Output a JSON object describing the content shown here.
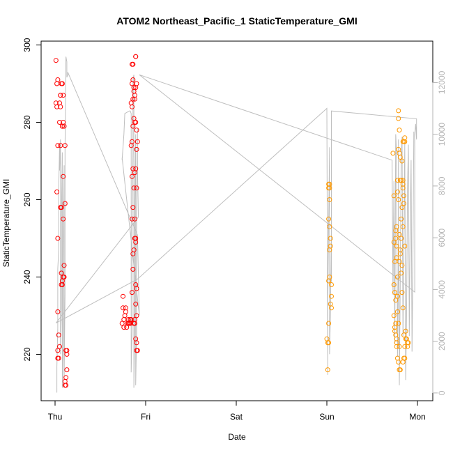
{
  "chart_data": {
    "type": "scatter",
    "title": "ATOM2 Northeast_Pacific_1 StaticTemperature_GMI",
    "xlabel": "Date",
    "ylabel": "StaticTemperature_GMI",
    "x_ticks": [
      "Thu",
      "Fri",
      "Sat",
      "Sun",
      "Mon"
    ],
    "x_domain_days": [
      0,
      4.05
    ],
    "ylim": [
      208,
      301
    ],
    "y_ticks": [
      220,
      240,
      260,
      280,
      300
    ],
    "y2lim": [
      -300,
      13600
    ],
    "y2_ticks": [
      0,
      2000,
      4000,
      6000,
      8000,
      10000,
      12000
    ],
    "colors": {
      "early": "#ff0000",
      "late": "#ff9900",
      "altitude": "#bebebe"
    },
    "series": [
      {
        "color": "#ff0000",
        "points": [
          [
            0.01,
            296
          ],
          [
            0.02,
            290
          ],
          [
            0.03,
            291
          ],
          [
            0.01,
            285
          ],
          [
            0.02,
            284
          ],
          [
            0.03,
            274
          ],
          [
            0.02,
            262
          ],
          [
            0.03,
            250
          ],
          [
            0.03,
            231
          ],
          [
            0.04,
            225
          ],
          [
            0.03,
            221
          ],
          [
            0.03,
            219
          ],
          [
            0.04,
            219
          ],
          [
            0.05,
            222
          ],
          [
            0.05,
            280
          ],
          [
            0.06,
            287
          ],
          [
            0.05,
            285
          ],
          [
            0.06,
            284
          ],
          [
            0.06,
            274
          ],
          [
            0.06,
            258
          ],
          [
            0.07,
            258
          ],
          [
            0.07,
            241
          ],
          [
            0.08,
            239
          ],
          [
            0.08,
            238
          ],
          [
            0.07,
            290
          ],
          [
            0.08,
            290
          ],
          [
            0.09,
            287
          ],
          [
            0.09,
            280
          ],
          [
            0.08,
            279
          ],
          [
            0.09,
            266
          ],
          [
            0.09,
            255
          ],
          [
            0.1,
            243
          ],
          [
            0.09,
            240
          ],
          [
            0.1,
            240
          ],
          [
            0.11,
            274
          ],
          [
            0.1,
            279
          ],
          [
            0.11,
            259
          ],
          [
            0.12,
            221
          ],
          [
            0.13,
            220
          ],
          [
            0.13,
            216
          ],
          [
            0.12,
            214
          ],
          [
            0.11,
            213
          ],
          [
            0.12,
            212
          ],
          [
            0.11,
            212
          ],
          [
            0.13,
            221
          ],
          [
            0.07,
            238
          ],
          [
            0.08,
            279
          ],
          [
            0.06,
            287
          ],
          [
            0.74,
            228
          ],
          [
            0.75,
            235
          ],
          [
            0.75,
            232
          ],
          [
            0.76,
            229
          ],
          [
            0.76,
            227
          ],
          [
            0.77,
            230
          ],
          [
            0.78,
            231
          ],
          [
            0.78,
            232
          ],
          [
            0.79,
            227
          ],
          [
            0.8,
            228
          ],
          [
            0.81,
            228
          ],
          [
            0.81,
            229
          ],
          [
            0.82,
            228
          ],
          [
            0.83,
            229
          ],
          [
            0.83,
            228
          ],
          [
            0.84,
            229
          ],
          [
            0.85,
            236
          ],
          [
            0.86,
            242
          ],
          [
            0.86,
            246
          ],
          [
            0.85,
            255
          ],
          [
            0.86,
            258
          ],
          [
            0.85,
            266
          ],
          [
            0.86,
            268
          ],
          [
            0.87,
            247
          ],
          [
            0.88,
            250
          ],
          [
            0.89,
            249
          ],
          [
            0.89,
            250
          ],
          [
            0.88,
            255
          ],
          [
            0.87,
            263
          ],
          [
            0.88,
            267
          ],
          [
            0.89,
            268
          ],
          [
            0.9,
            263
          ],
          [
            0.84,
            274
          ],
          [
            0.85,
            275
          ],
          [
            0.86,
            279
          ],
          [
            0.87,
            281
          ],
          [
            0.88,
            280
          ],
          [
            0.89,
            280
          ],
          [
            0.9,
            278
          ],
          [
            0.84,
            285
          ],
          [
            0.85,
            284
          ],
          [
            0.86,
            286
          ],
          [
            0.87,
            288
          ],
          [
            0.88,
            286
          ],
          [
            0.89,
            289
          ],
          [
            0.85,
            290
          ],
          [
            0.86,
            291
          ],
          [
            0.87,
            289
          ],
          [
            0.88,
            287
          ],
          [
            0.85,
            295
          ],
          [
            0.86,
            295
          ],
          [
            0.89,
            297
          ],
          [
            0.89,
            297
          ],
          [
            0.9,
            290
          ],
          [
            0.91,
            275
          ],
          [
            0.9,
            273
          ],
          [
            0.89,
            238
          ],
          [
            0.9,
            237
          ],
          [
            0.89,
            233
          ],
          [
            0.9,
            230
          ],
          [
            0.88,
            228
          ],
          [
            0.87,
            228
          ],
          [
            0.9,
            223
          ],
          [
            0.89,
            224
          ],
          [
            0.9,
            221
          ],
          [
            0.91,
            221
          ],
          [
            0.88,
            229
          ]
        ]
      },
      {
        "color": "#ff9900",
        "points": [
          [
            3.0,
            224
          ],
          [
            3.01,
            223
          ],
          [
            3.02,
            223
          ],
          [
            3.01,
            216
          ],
          [
            3.02,
            228
          ],
          [
            3.02,
            239
          ],
          [
            3.03,
            240
          ],
          [
            3.03,
            247
          ],
          [
            3.02,
            255
          ],
          [
            3.03,
            253
          ],
          [
            3.04,
            248
          ],
          [
            3.03,
            260
          ],
          [
            3.02,
            263
          ],
          [
            3.03,
            264
          ],
          [
            3.02,
            264
          ],
          [
            3.03,
            263
          ],
          [
            3.04,
            250
          ],
          [
            3.05,
            238
          ],
          [
            3.05,
            235
          ],
          [
            3.04,
            233
          ],
          [
            3.05,
            232
          ],
          [
            3.73,
            272
          ],
          [
            3.74,
            261
          ],
          [
            3.74,
            249
          ],
          [
            3.75,
            244
          ],
          [
            3.74,
            238
          ],
          [
            3.75,
            236
          ],
          [
            3.76,
            234
          ],
          [
            3.74,
            230
          ],
          [
            3.75,
            227
          ],
          [
            3.75,
            226
          ],
          [
            3.76,
            228
          ],
          [
            3.76,
            225
          ],
          [
            3.77,
            224
          ],
          [
            3.77,
            223
          ],
          [
            3.77,
            222
          ],
          [
            3.78,
            219
          ],
          [
            3.79,
            218
          ],
          [
            3.8,
            216
          ],
          [
            3.81,
            216
          ],
          [
            3.8,
            222
          ],
          [
            3.79,
            228
          ],
          [
            3.78,
            231
          ],
          [
            3.78,
            235
          ],
          [
            3.78,
            240
          ],
          [
            3.77,
            245
          ],
          [
            3.76,
            250
          ],
          [
            3.77,
            253
          ],
          [
            3.76,
            252
          ],
          [
            3.78,
            262
          ],
          [
            3.79,
            260
          ],
          [
            3.78,
            265
          ],
          [
            3.79,
            273
          ],
          [
            3.8,
            278
          ],
          [
            3.79,
            281
          ],
          [
            3.79,
            283
          ],
          [
            3.8,
            272
          ],
          [
            3.81,
            271
          ],
          [
            3.82,
            265
          ],
          [
            3.83,
            258
          ],
          [
            3.82,
            250
          ],
          [
            3.81,
            246
          ],
          [
            3.82,
            241
          ],
          [
            3.83,
            236
          ],
          [
            3.84,
            232
          ],
          [
            3.85,
            225
          ],
          [
            3.86,
            222
          ],
          [
            3.85,
            219
          ],
          [
            3.84,
            218
          ],
          [
            3.86,
            219
          ],
          [
            3.87,
            224
          ],
          [
            3.88,
            224
          ],
          [
            3.87,
            226
          ],
          [
            3.89,
            223
          ],
          [
            3.9,
            223
          ],
          [
            3.89,
            222
          ],
          [
            3.84,
            265
          ],
          [
            3.85,
            259
          ],
          [
            3.84,
            275
          ],
          [
            3.85,
            275
          ],
          [
            3.86,
            276
          ],
          [
            3.86,
            275
          ],
          [
            3.84,
            264
          ],
          [
            3.83,
            270
          ],
          [
            3.81,
            265
          ],
          [
            3.82,
            255
          ],
          [
            3.84,
            253
          ],
          [
            3.85,
            261
          ],
          [
            3.86,
            248
          ],
          [
            3.83,
            243
          ],
          [
            3.84,
            263
          ],
          [
            3.8,
            244
          ],
          [
            3.81,
            247
          ],
          [
            3.77,
            248
          ],
          [
            3.8,
            251
          ]
        ]
      }
    ],
    "altitude_line": [
      [
        0.02,
        13
      ],
      [
        0.02,
        1000
      ],
      [
        0.03,
        2500
      ],
      [
        0.03,
        4800
      ],
      [
        0.04,
        5500
      ],
      [
        0.04,
        7800
      ],
      [
        0.05,
        9600
      ],
      [
        0.05,
        8600
      ],
      [
        0.06,
        9800
      ],
      [
        0.06,
        1500
      ],
      [
        0.07,
        3300
      ],
      [
        0.07,
        6800
      ],
      [
        0.08,
        9300
      ],
      [
        0.08,
        200
      ],
      [
        0.09,
        2000
      ],
      [
        0.09,
        5200
      ],
      [
        0.1,
        8800
      ],
      [
        0.1,
        500
      ],
      [
        0.11,
        3800
      ],
      [
        0.11,
        9400
      ],
      [
        0.12,
        13000
      ],
      [
        0.13,
        12800
      ],
      [
        0.13,
        12200
      ],
      [
        0.14,
        12300
      ],
      [
        0.14,
        12400
      ],
      [
        0.91,
        6100
      ],
      [
        0.93,
        3000
      ],
      [
        0.74,
        9100
      ],
      [
        0.74,
        9000
      ],
      [
        0.76,
        10000
      ],
      [
        0.77,
        10800
      ],
      [
        0.82,
        10900
      ],
      [
        0.83,
        10900
      ],
      [
        0.84,
        10800
      ],
      [
        0.84,
        800
      ],
      [
        0.85,
        2400
      ],
      [
        0.85,
        6000
      ],
      [
        0.86,
        9300
      ],
      [
        0.86,
        12100
      ],
      [
        0.87,
        12300
      ],
      [
        0.87,
        200
      ],
      [
        0.88,
        3000
      ],
      [
        0.88,
        7200
      ],
      [
        0.89,
        10000
      ],
      [
        0.89,
        300
      ],
      [
        0.9,
        2300
      ],
      [
        0.9,
        6800
      ],
      [
        0.91,
        10200
      ],
      [
        0.91,
        8600
      ],
      [
        0.92,
        6800
      ],
      [
        0.01,
        2700
      ],
      [
        0.91,
        4400
      ],
      [
        3.0,
        11000
      ],
      [
        3.01,
        700
      ],
      [
        3.01,
        3400
      ],
      [
        3.02,
        6600
      ],
      [
        3.03,
        9500
      ],
      [
        3.03,
        1500
      ],
      [
        3.04,
        3200
      ],
      [
        3.05,
        6200
      ],
      [
        3.05,
        4300
      ],
      [
        3.05,
        10900
      ],
      [
        3.99,
        10600
      ],
      [
        3.99,
        9800
      ],
      [
        3.98,
        10400
      ],
      [
        3.97,
        10000
      ],
      [
        3.97,
        3900
      ],
      [
        0.93,
        12300
      ],
      [
        3.72,
        9000
      ],
      [
        3.73,
        3800
      ],
      [
        3.74,
        8200
      ],
      [
        3.75,
        1900
      ],
      [
        3.76,
        10000
      ],
      [
        3.77,
        9200
      ],
      [
        3.78,
        1400
      ],
      [
        3.79,
        5000
      ],
      [
        3.79,
        9800
      ],
      [
        3.8,
        300
      ],
      [
        3.81,
        4200
      ],
      [
        3.82,
        9000
      ],
      [
        3.83,
        9900
      ],
      [
        3.84,
        2200
      ],
      [
        3.85,
        5600
      ],
      [
        3.86,
        9700
      ],
      [
        3.87,
        500
      ],
      [
        3.88,
        3000
      ],
      [
        3.89,
        7900
      ],
      [
        3.9,
        9600
      ],
      [
        3.91,
        2200
      ],
      [
        3.92,
        6700
      ],
      [
        3.93,
        9000
      ],
      [
        3.94,
        1600
      ],
      [
        3.95,
        5200
      ],
      [
        3.96,
        10100
      ]
    ]
  }
}
